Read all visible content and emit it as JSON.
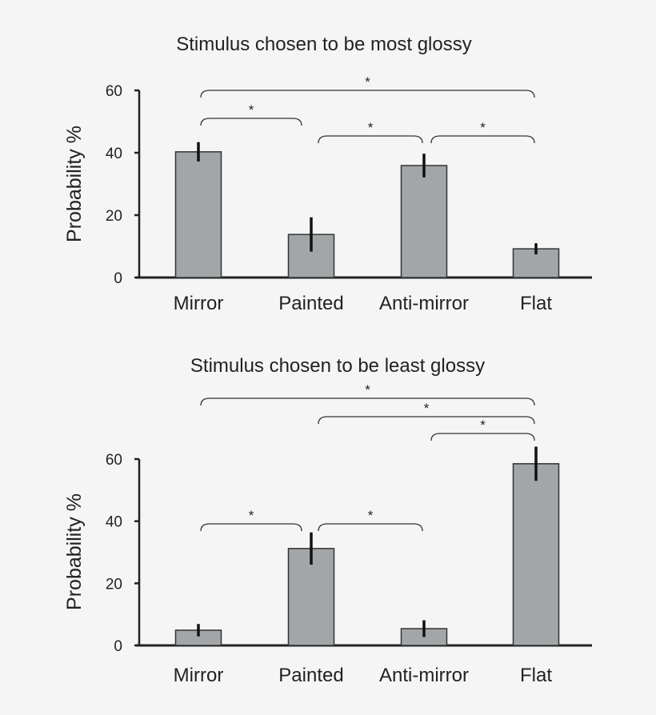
{
  "chart_data": [
    {
      "type": "bar",
      "title": "Stimulus chosen to be most glossy",
      "xlabel": "",
      "ylabel": "Probability %",
      "ylim": [
        0,
        60
      ],
      "yticks": [
        "0",
        "20",
        "40",
        "60"
      ],
      "categories": [
        "Mirror",
        "Painted",
        "Anti-mirror",
        "Flat"
      ],
      "values": [
        40.3,
        13.8,
        35.9,
        9.2
      ],
      "errors": [
        3.1,
        5.5,
        3.8,
        1.8
      ],
      "bar_color": "#a3a6a8",
      "grid": false,
      "significance": [
        {
          "pair": [
            0,
            3
          ],
          "label": "*"
        },
        {
          "pair": [
            0,
            1
          ],
          "label": "*"
        },
        {
          "pair": [
            1,
            2
          ],
          "label": "*"
        },
        {
          "pair": [
            2,
            3
          ],
          "label": "*"
        }
      ]
    },
    {
      "type": "bar",
      "title": "Stimulus chosen to be least glossy",
      "xlabel": "",
      "ylabel": "Probability %",
      "ylim": [
        0,
        60
      ],
      "yticks": [
        "0",
        "20",
        "40",
        "60"
      ],
      "categories": [
        "Mirror",
        "Painted",
        "Anti-mirror",
        "Flat"
      ],
      "values": [
        4.9,
        31.2,
        5.4,
        58.5
      ],
      "errors": [
        2.0,
        5.2,
        2.7,
        5.5
      ],
      "bar_color": "#a3a6a8",
      "grid": false,
      "significance": [
        {
          "pair": [
            0,
            3
          ],
          "label": "*"
        },
        {
          "pair": [
            1,
            3
          ],
          "label": "*"
        },
        {
          "pair": [
            2,
            3
          ],
          "label": "*"
        },
        {
          "pair": [
            0,
            1
          ],
          "label": "*"
        },
        {
          "pair": [
            1,
            2
          ],
          "label": "*"
        }
      ]
    }
  ]
}
